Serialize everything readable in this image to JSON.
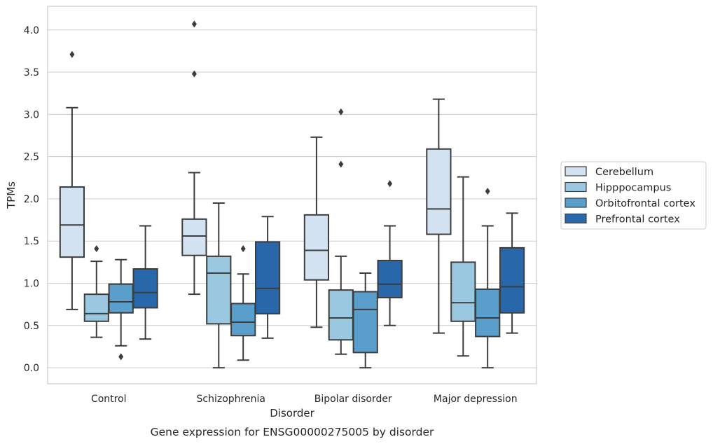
{
  "caption": "Gene expression for ENSG00000275005 by disorder",
  "chart_data": {
    "type": "box",
    "xlabel": "Disorder",
    "ylabel": "TPMs",
    "ylim": [
      -0.19,
      4.28
    ],
    "yticks": [
      "0.0",
      "0.5",
      "1.0",
      "1.5",
      "2.0",
      "2.5",
      "3.0",
      "3.5",
      "4.0"
    ],
    "grid": true,
    "legend_position": "right",
    "categories": [
      "Control",
      "Schizophrenia",
      "Bipolar disorder",
      "Major depression"
    ],
    "series": [
      {
        "name": "Cerebellum",
        "color": "#d2e2f1",
        "boxes": [
          {
            "whisker_low": 0.69,
            "q1": 1.31,
            "median": 1.69,
            "q3": 2.14,
            "whisker_high": 3.08,
            "outliers": [
              3.71
            ]
          },
          {
            "whisker_low": 0.87,
            "q1": 1.33,
            "median": 1.56,
            "q3": 1.76,
            "whisker_high": 2.31,
            "outliers": [
              3.48,
              4.07
            ]
          },
          {
            "whisker_low": 0.48,
            "q1": 1.04,
            "median": 1.39,
            "q3": 1.81,
            "whisker_high": 2.73,
            "outliers": []
          },
          {
            "whisker_low": 0.41,
            "q1": 1.58,
            "median": 1.88,
            "q3": 2.59,
            "whisker_high": 3.18,
            "outliers": []
          }
        ]
      },
      {
        "name": "Hipppocampus",
        "color": "#9ac8e0",
        "boxes": [
          {
            "whisker_low": 0.36,
            "q1": 0.55,
            "median": 0.64,
            "q3": 0.87,
            "whisker_high": 1.26,
            "outliers": [
              1.41
            ]
          },
          {
            "whisker_low": 0.0,
            "q1": 0.52,
            "median": 1.12,
            "q3": 1.32,
            "whisker_high": 1.95,
            "outliers": []
          },
          {
            "whisker_low": 0.16,
            "q1": 0.33,
            "median": 0.59,
            "q3": 0.92,
            "whisker_high": 1.32,
            "outliers": [
              2.41,
              3.03
            ]
          },
          {
            "whisker_low": 0.14,
            "q1": 0.55,
            "median": 0.77,
            "q3": 1.25,
            "whisker_high": 2.26,
            "outliers": []
          }
        ]
      },
      {
        "name": "Orbitofrontal cortex",
        "color": "#5a9fcb",
        "boxes": [
          {
            "whisker_low": 0.26,
            "q1": 0.65,
            "median": 0.78,
            "q3": 0.99,
            "whisker_high": 1.28,
            "outliers": [
              0.13
            ]
          },
          {
            "whisker_low": 0.09,
            "q1": 0.38,
            "median": 0.54,
            "q3": 0.76,
            "whisker_high": 1.11,
            "outliers": [
              1.41
            ]
          },
          {
            "whisker_low": 0.0,
            "q1": 0.18,
            "median": 0.69,
            "q3": 0.9,
            "whisker_high": 1.12,
            "outliers": []
          },
          {
            "whisker_low": 0.0,
            "q1": 0.37,
            "median": 0.59,
            "q3": 0.93,
            "whisker_high": 1.68,
            "outliers": [
              2.09
            ]
          }
        ]
      },
      {
        "name": "Prefrontal cortex",
        "color": "#2867aa",
        "boxes": [
          {
            "whisker_low": 0.34,
            "q1": 0.71,
            "median": 0.89,
            "q3": 1.17,
            "whisker_high": 1.68,
            "outliers": []
          },
          {
            "whisker_low": 0.35,
            "q1": 0.64,
            "median": 0.94,
            "q3": 1.49,
            "whisker_high": 1.79,
            "outliers": []
          },
          {
            "whisker_low": 0.5,
            "q1": 0.83,
            "median": 0.99,
            "q3": 1.27,
            "whisker_high": 1.68,
            "outliers": [
              2.18
            ]
          },
          {
            "whisker_low": 0.41,
            "q1": 0.65,
            "median": 0.96,
            "q3": 1.42,
            "whisker_high": 1.83,
            "outliers": []
          }
        ]
      }
    ]
  }
}
